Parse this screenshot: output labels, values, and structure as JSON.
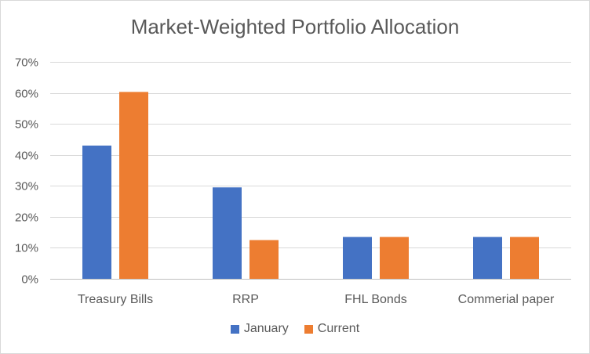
{
  "chart_data": {
    "type": "bar",
    "title": "Market-Weighted Portfolio Allocation",
    "categories": [
      "Treasury Bills",
      "RRP",
      "FHL Bonds",
      "Commerial paper"
    ],
    "series": [
      {
        "name": "January",
        "color": "#4472c4",
        "values": [
          43,
          29.5,
          13.5,
          13.5
        ]
      },
      {
        "name": "Current",
        "color": "#ed7d31",
        "values": [
          60.3,
          12.5,
          13.5,
          13.5
        ]
      }
    ],
    "ylim": [
      0,
      70
    ],
    "yticks": [
      "0%",
      "10%",
      "20%",
      "30%",
      "40%",
      "50%",
      "60%",
      "70%"
    ],
    "grid": true,
    "legend_position": "bottom"
  }
}
